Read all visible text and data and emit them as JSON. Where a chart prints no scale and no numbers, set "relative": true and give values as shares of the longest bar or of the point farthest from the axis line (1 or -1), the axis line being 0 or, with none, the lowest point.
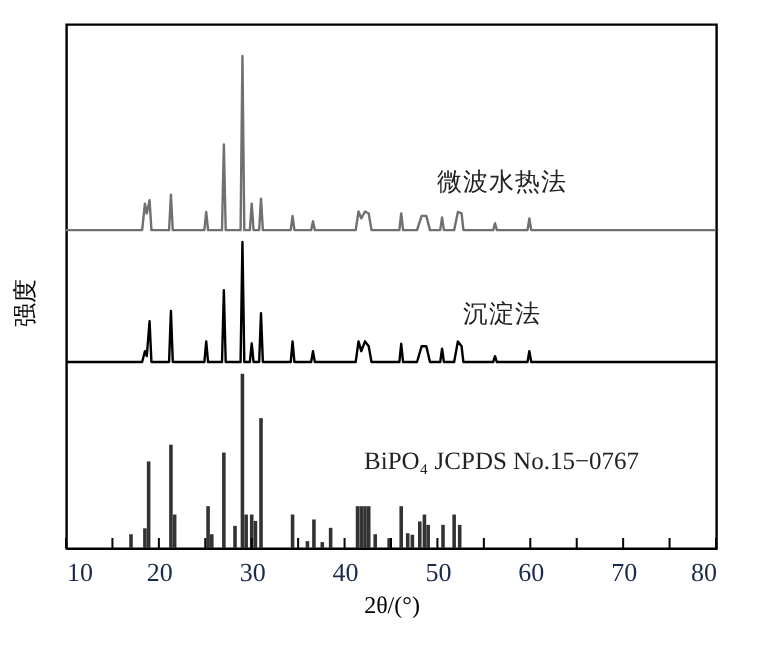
{
  "chart_data": {
    "type": "line",
    "relative": true,
    "xlabel": "2θ/(°)",
    "ylabel": "强度",
    "xlim": [
      10,
      80
    ],
    "xticks": [
      10,
      {
        "value": 15,
        "label": null
      },
      20,
      {
        "value": 25,
        "label": null
      },
      30,
      {
        "value": 35,
        "label": null
      },
      40,
      {
        "value": 45,
        "label": null
      },
      50,
      {
        "value": 55,
        "label": null
      },
      60,
      {
        "value": 65,
        "label": null
      },
      70,
      {
        "value": 75,
        "label": null
      },
      80
    ],
    "grid": false,
    "legend": false,
    "marker": "none",
    "line_style": "solid",
    "series": [
      {
        "name": "微波水热法",
        "color": "#707070",
        "x": [
          10,
          18.2,
          18.5,
          18.7,
          19.0,
          19.2,
          21.1,
          21.3,
          21.5,
          24.9,
          25.1,
          25.3,
          26.8,
          27.0,
          27.2,
          28.8,
          29.0,
          29.2,
          29.8,
          30.0,
          30.2,
          30.8,
          31.0,
          31.2,
          34.2,
          34.4,
          34.6,
          36.4,
          36.6,
          36.8,
          41.2,
          41.5,
          41.8,
          42.2,
          42.6,
          42.9,
          45.9,
          46.1,
          46.3,
          47.8,
          48.3,
          48.8,
          49.2,
          50.3,
          50.5,
          50.7,
          51.8,
          52.2,
          52.6,
          52.8,
          56.0,
          56.2,
          56.4,
          59.7,
          59.9,
          60.1,
          80
        ],
        "values": [
          0.646,
          0.646,
          0.7,
          0.68,
          0.707,
          0.646,
          0.646,
          0.718,
          0.646,
          0.646,
          0.683,
          0.646,
          0.646,
          0.82,
          0.646,
          0.646,
          1,
          0.646,
          0.646,
          0.7,
          0.646,
          0.646,
          0.71,
          0.646,
          0.646,
          0.675,
          0.646,
          0.646,
          0.664,
          0.646,
          0.646,
          0.684,
          0.67,
          0.684,
          0.68,
          0.646,
          0.646,
          0.68,
          0.646,
          0.646,
          0.675,
          0.675,
          0.646,
          0.646,
          0.672,
          0.646,
          0.646,
          0.683,
          0.68,
          0.646,
          0.646,
          0.66,
          0.646,
          0.646,
          0.67,
          0.646,
          0.646
        ]
      },
      {
        "name": "沉淀法",
        "color": "#000000",
        "x": [
          10,
          18.2,
          18.5,
          18.7,
          19.0,
          19.2,
          21.1,
          21.3,
          21.5,
          24.9,
          25.1,
          25.3,
          26.8,
          27.0,
          27.2,
          28.8,
          29.0,
          29.2,
          29.8,
          30.0,
          30.2,
          30.8,
          31.0,
          31.2,
          34.2,
          34.4,
          34.6,
          36.4,
          36.6,
          36.8,
          41.2,
          41.5,
          41.8,
          42.2,
          42.6,
          42.9,
          45.9,
          46.1,
          46.3,
          47.8,
          48.3,
          48.8,
          49.2,
          50.3,
          50.5,
          50.7,
          51.8,
          52.2,
          52.6,
          52.8,
          56.0,
          56.2,
          56.4,
          59.7,
          59.9,
          60.1,
          80
        ],
        "values": [
          0.378,
          0.378,
          0.4,
          0.39,
          0.461,
          0.378,
          0.378,
          0.482,
          0.378,
          0.378,
          0.42,
          0.378,
          0.378,
          0.524,
          0.378,
          0.378,
          0.622,
          0.378,
          0.378,
          0.416,
          0.378,
          0.378,
          0.477,
          0.378,
          0.378,
          0.42,
          0.378,
          0.378,
          0.4,
          0.378,
          0.378,
          0.42,
          0.4,
          0.42,
          0.41,
          0.378,
          0.378,
          0.415,
          0.378,
          0.378,
          0.41,
          0.41,
          0.378,
          0.378,
          0.405,
          0.378,
          0.378,
          0.42,
          0.41,
          0.378,
          0.378,
          0.39,
          0.378,
          0.378,
          0.4,
          0.378,
          0.378
        ]
      },
      {
        "name": "BiPO₄ JCPDS No.15−0767",
        "type": "bar",
        "color": "#333333",
        "x": [
          17.0,
          18.5,
          18.9,
          21.3,
          21.7,
          25.3,
          25.7,
          27.0,
          28.2,
          29.0,
          29.4,
          30.0,
          30.4,
          31.0,
          34.4,
          36.0,
          36.7,
          37.6,
          38.5,
          41.4,
          41.8,
          42.2,
          42.6,
          43.3,
          44.8,
          46.1,
          46.8,
          47.3,
          48.1,
          48.6,
          49.0,
          50.6,
          51.8,
          52.4
        ],
        "values": [
          0.028,
          0.04,
          0.176,
          0.21,
          0.068,
          0.085,
          0.028,
          0.194,
          0.045,
          0.354,
          0.068,
          0.068,
          0.055,
          0.264,
          0.068,
          0.014,
          0.058,
          0.012,
          0.041,
          0.085,
          0.085,
          0.085,
          0.085,
          0.028,
          0.02,
          0.085,
          0.03,
          0.027,
          0.054,
          0.068,
          0.047,
          0.047,
          0.068,
          0.047
        ]
      }
    ]
  }
}
